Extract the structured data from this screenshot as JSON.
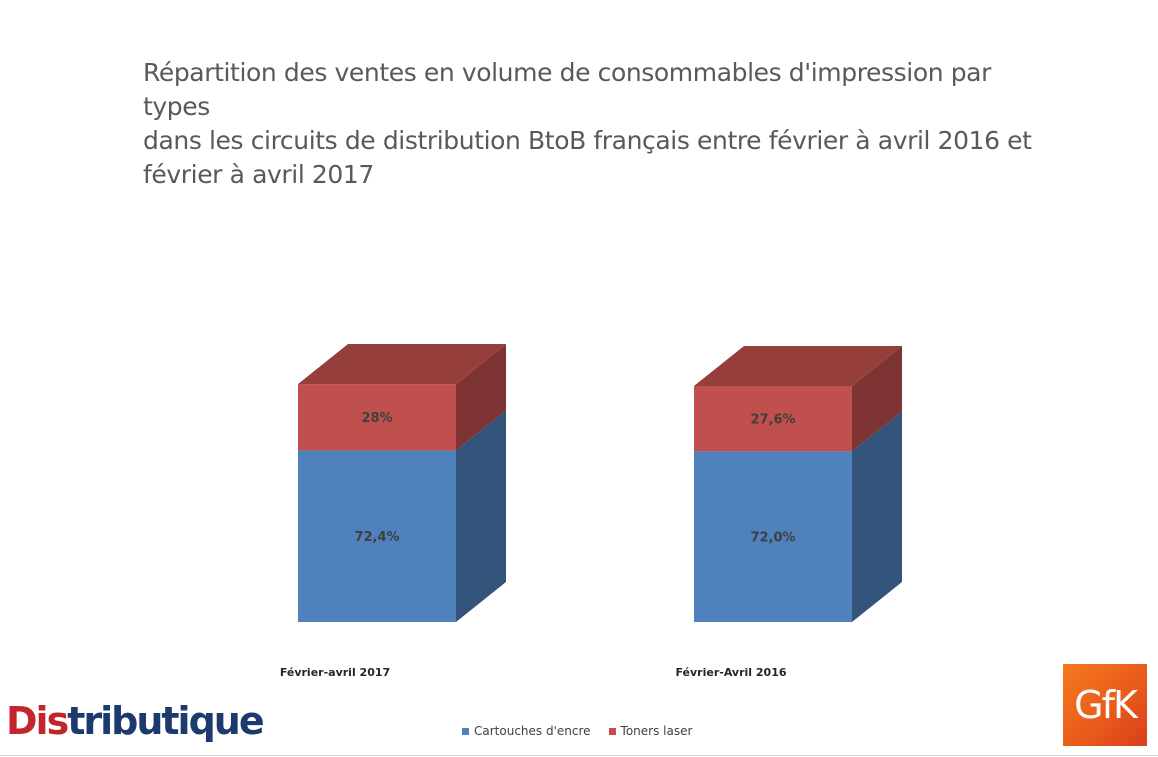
{
  "title_lines": [
    "Répartition des ventes en volume de consommables d'impression par types",
    "dans les circuits de distribution BtoB français entre février à avril 2016 et",
    "février à avril 2017"
  ],
  "chart_data": {
    "type": "bar",
    "stacked": true,
    "style": "3d",
    "title": "Répartition des ventes en volume de consommables d'impression par types dans les circuits de distribution BtoB français entre février à avril 2016 et février à avril 2017",
    "categories": [
      "Février-avril 2017",
      "Février-Avril 2016"
    ],
    "series": [
      {
        "name": "Cartouches d'encre",
        "values": [
          72.4,
          72.0
        ],
        "labels": [
          "72,4%",
          "72,0%"
        ],
        "color": "#4f81bd"
      },
      {
        "name": "Toners laser",
        "values": [
          28,
          27.6
        ],
        "labels": [
          "28%",
          "27,6%"
        ],
        "color": "#c0504d"
      }
    ],
    "ylim": [
      0,
      100
    ],
    "grid": false,
    "legend": "bottom"
  },
  "logos": {
    "left": {
      "part1": "Dis",
      "part2": "tributique"
    },
    "right": "GfK"
  }
}
